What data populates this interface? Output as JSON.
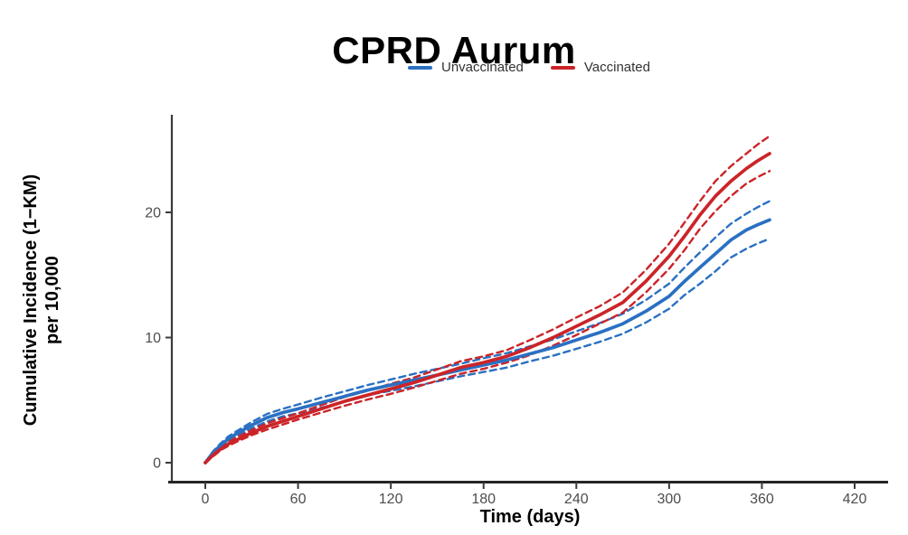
{
  "title": "CPRD Aurum",
  "legend": {
    "items": [
      {
        "label": "Unvaccinated",
        "color": "#2a70c2"
      },
      {
        "label": "Vaccinated",
        "color": "#cb2428"
      }
    ]
  },
  "axes": {
    "x_label": "Time (days)",
    "y_label_line1": "Cumulative Incidence (1−KM)",
    "y_label_line2": "per 10,000"
  },
  "colors": {
    "unvaccinated": "#2a70c2",
    "vaccinated": "#cb2428",
    "axis_line": "#3a3a3a",
    "bottom_axis_line": "#262626",
    "tick_label": "#4d4d4d",
    "title": "#000000"
  },
  "chart_data": {
    "type": "line",
    "title": "CPRD Aurum",
    "xlabel": "Time (days)",
    "ylabel": "Cumulative Incidence (1−KM) per 10,000",
    "legend_position": "top",
    "grid": false,
    "xlim": [
      0,
      440
    ],
    "ylim": [
      0,
      27.5
    ],
    "x_ticks": [
      0,
      60,
      120,
      180,
      240,
      300,
      360,
      420
    ],
    "y_ticks": [
      0,
      10,
      20
    ],
    "x": [
      0,
      5,
      10,
      15,
      20,
      30,
      40,
      50,
      60,
      75,
      90,
      105,
      120,
      135,
      150,
      165,
      180,
      195,
      210,
      225,
      240,
      255,
      270,
      285,
      300,
      310,
      320,
      330,
      340,
      350,
      357,
      365
    ],
    "series": [
      {
        "name": "Unvaccinated",
        "color": "#2a70c2",
        "style": "solid",
        "values": [
          0,
          0.8,
          1.4,
          1.9,
          2.3,
          3.0,
          3.6,
          4.0,
          4.3,
          4.8,
          5.3,
          5.8,
          6.2,
          6.6,
          7.0,
          7.4,
          7.8,
          8.2,
          8.7,
          9.2,
          9.8,
          10.4,
          11.1,
          12.1,
          13.3,
          14.5,
          15.6,
          16.7,
          17.8,
          18.6,
          19.0,
          19.4
        ]
      },
      {
        "name": "Unvaccinated 95% CI upper",
        "color": "#2a70c2",
        "style": "dashed",
        "values": [
          0,
          0.9,
          1.55,
          2.1,
          2.5,
          3.25,
          3.9,
          4.3,
          4.65,
          5.2,
          5.7,
          6.2,
          6.65,
          7.1,
          7.5,
          7.9,
          8.35,
          8.75,
          9.3,
          9.85,
          10.5,
          11.15,
          11.9,
          13.0,
          14.3,
          15.6,
          16.8,
          18.0,
          19.1,
          19.9,
          20.4,
          20.9
        ]
      },
      {
        "name": "Unvaccinated 95% CI lower",
        "color": "#2a70c2",
        "style": "dashed",
        "values": [
          0,
          0.7,
          1.25,
          1.7,
          2.1,
          2.75,
          3.3,
          3.7,
          3.95,
          4.4,
          4.9,
          5.4,
          5.75,
          6.1,
          6.5,
          6.9,
          7.25,
          7.6,
          8.1,
          8.55,
          9.1,
          9.65,
          10.3,
          11.2,
          12.3,
          13.4,
          14.3,
          15.3,
          16.4,
          17.1,
          17.5,
          17.9
        ]
      },
      {
        "name": "Vaccinated",
        "color": "#cb2428",
        "style": "solid",
        "values": [
          0,
          0.6,
          1.1,
          1.5,
          1.8,
          2.4,
          2.9,
          3.3,
          3.7,
          4.3,
          4.9,
          5.4,
          5.9,
          6.4,
          7.0,
          7.6,
          8.0,
          8.5,
          9.2,
          10.0,
          10.9,
          11.8,
          12.8,
          14.5,
          16.5,
          18.1,
          19.8,
          21.3,
          22.5,
          23.5,
          24.1,
          24.7
        ]
      },
      {
        "name": "Vaccinated 95% CI upper",
        "color": "#cb2428",
        "style": "dashed",
        "values": [
          0,
          0.7,
          1.2,
          1.65,
          2.0,
          2.6,
          3.15,
          3.55,
          3.95,
          4.6,
          5.25,
          5.75,
          6.3,
          6.8,
          7.45,
          8.1,
          8.5,
          9.0,
          9.8,
          10.65,
          11.6,
          12.5,
          13.6,
          15.4,
          17.5,
          19.2,
          20.9,
          22.5,
          23.7,
          24.7,
          25.4,
          26.1
        ]
      },
      {
        "name": "Vaccinated 95% CI lower",
        "color": "#cb2428",
        "style": "dashed",
        "values": [
          0,
          0.5,
          1.0,
          1.35,
          1.65,
          2.2,
          2.65,
          3.05,
          3.45,
          4.0,
          4.55,
          5.05,
          5.5,
          6.0,
          6.55,
          7.1,
          7.5,
          8.0,
          8.6,
          9.35,
          10.2,
          11.1,
          12.0,
          13.6,
          15.5,
          17.0,
          18.7,
          20.1,
          21.3,
          22.3,
          22.8,
          23.3
        ]
      }
    ]
  }
}
